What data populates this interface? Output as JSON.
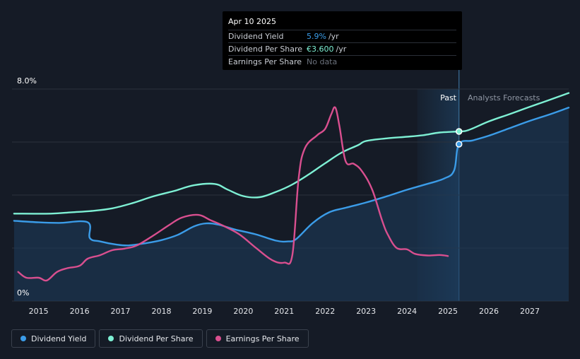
{
  "tooltip": {
    "date": "Apr 10 2025",
    "rows": [
      {
        "label": "Dividend Yield",
        "value": "5.9%",
        "unit": "/yr",
        "color": "#3b9ce8"
      },
      {
        "label": "Dividend Per Share",
        "value": "€3.600",
        "unit": "/yr",
        "color": "#7ef0d4"
      },
      {
        "label": "Earnings Per Share",
        "value": "No data",
        "unit": "",
        "color": "#6b717c"
      }
    ]
  },
  "zones": {
    "past": "Past",
    "forecast": "Analysts Forecasts"
  },
  "legend": [
    {
      "label": "Dividend Yield",
      "color": "#3b9ce8"
    },
    {
      "label": "Dividend Per Share",
      "color": "#7ef0d4"
    },
    {
      "label": "Earnings Per Share",
      "color": "#d94f8f"
    }
  ],
  "chart_data": {
    "type": "line",
    "x_ticks": [
      "2015",
      "2016",
      "2017",
      "2018",
      "2019",
      "2020",
      "2021",
      "2022",
      "2023",
      "2024",
      "2025",
      "2026",
      "2027"
    ],
    "y_ticks": [
      "0%",
      "8.0%"
    ],
    "ylim": [
      0,
      8
    ],
    "xlim": [
      2014.35,
      2027.95
    ],
    "past_forecast_split": 2025.27,
    "highlight_start": 2024.25,
    "grid": true,
    "series": [
      {
        "name": "Dividend Yield",
        "color": "#3b9ce8",
        "area": true,
        "points": [
          [
            2014.4,
            3.03
          ],
          [
            2015.0,
            2.97
          ],
          [
            2015.5,
            2.95
          ],
          [
            2016.2,
            2.97
          ],
          [
            2016.25,
            2.38
          ],
          [
            2016.5,
            2.25
          ],
          [
            2016.9,
            2.13
          ],
          [
            2017.2,
            2.1
          ],
          [
            2017.6,
            2.18
          ],
          [
            2018.0,
            2.3
          ],
          [
            2018.4,
            2.5
          ],
          [
            2018.8,
            2.82
          ],
          [
            2019.1,
            2.93
          ],
          [
            2019.4,
            2.88
          ],
          [
            2019.8,
            2.7
          ],
          [
            2020.3,
            2.52
          ],
          [
            2020.8,
            2.28
          ],
          [
            2021.1,
            2.25
          ],
          [
            2021.3,
            2.35
          ],
          [
            2021.7,
            2.95
          ],
          [
            2022.1,
            3.35
          ],
          [
            2022.5,
            3.52
          ],
          [
            2023.0,
            3.72
          ],
          [
            2023.5,
            3.95
          ],
          [
            2024.0,
            4.2
          ],
          [
            2024.4,
            4.38
          ],
          [
            2024.9,
            4.62
          ],
          [
            2025.15,
            4.93
          ],
          [
            2025.27,
            5.92
          ],
          [
            2025.6,
            6.06
          ],
          [
            2026.0,
            6.24
          ],
          [
            2026.5,
            6.52
          ],
          [
            2027.0,
            6.8
          ],
          [
            2027.5,
            7.05
          ],
          [
            2027.95,
            7.3
          ]
        ]
      },
      {
        "name": "Dividend Per Share",
        "color": "#7ef0d4",
        "area": false,
        "points": [
          [
            2014.4,
            3.3
          ],
          [
            2015.3,
            3.3
          ],
          [
            2015.8,
            3.35
          ],
          [
            2016.3,
            3.4
          ],
          [
            2016.8,
            3.5
          ],
          [
            2017.3,
            3.7
          ],
          [
            2017.8,
            3.95
          ],
          [
            2018.3,
            4.15
          ],
          [
            2018.8,
            4.37
          ],
          [
            2019.3,
            4.42
          ],
          [
            2019.6,
            4.22
          ],
          [
            2020.0,
            3.96
          ],
          [
            2020.4,
            3.92
          ],
          [
            2020.8,
            4.12
          ],
          [
            2021.2,
            4.4
          ],
          [
            2021.6,
            4.78
          ],
          [
            2022.0,
            5.2
          ],
          [
            2022.4,
            5.6
          ],
          [
            2022.8,
            5.88
          ],
          [
            2023.0,
            6.04
          ],
          [
            2023.5,
            6.14
          ],
          [
            2024.0,
            6.2
          ],
          [
            2024.4,
            6.26
          ],
          [
            2024.8,
            6.36
          ],
          [
            2025.27,
            6.4
          ],
          [
            2025.5,
            6.45
          ],
          [
            2026.0,
            6.78
          ],
          [
            2026.5,
            7.05
          ],
          [
            2027.0,
            7.33
          ],
          [
            2027.5,
            7.6
          ],
          [
            2027.95,
            7.85
          ]
        ]
      },
      {
        "name": "Earnings Per Share",
        "color": "#d94f8f",
        "area": false,
        "points": [
          [
            2014.5,
            1.1
          ],
          [
            2014.7,
            0.88
          ],
          [
            2015.0,
            0.88
          ],
          [
            2015.2,
            0.78
          ],
          [
            2015.45,
            1.1
          ],
          [
            2015.7,
            1.24
          ],
          [
            2016.0,
            1.33
          ],
          [
            2016.2,
            1.6
          ],
          [
            2016.5,
            1.73
          ],
          [
            2016.8,
            1.92
          ],
          [
            2017.1,
            1.98
          ],
          [
            2017.4,
            2.1
          ],
          [
            2017.8,
            2.47
          ],
          [
            2018.2,
            2.88
          ],
          [
            2018.5,
            3.15
          ],
          [
            2018.9,
            3.25
          ],
          [
            2019.2,
            3.05
          ],
          [
            2019.5,
            2.85
          ],
          [
            2019.9,
            2.52
          ],
          [
            2020.3,
            2.02
          ],
          [
            2020.7,
            1.55
          ],
          [
            2021.0,
            1.45
          ],
          [
            2021.2,
            1.75
          ],
          [
            2021.35,
            4.6
          ],
          [
            2021.5,
            5.75
          ],
          [
            2021.8,
            6.25
          ],
          [
            2022.0,
            6.5
          ],
          [
            2022.15,
            7.05
          ],
          [
            2022.25,
            7.3
          ],
          [
            2022.35,
            6.6
          ],
          [
            2022.5,
            5.28
          ],
          [
            2022.7,
            5.18
          ],
          [
            2022.9,
            4.9
          ],
          [
            2023.15,
            4.2
          ],
          [
            2023.4,
            3.0
          ],
          [
            2023.55,
            2.45
          ],
          [
            2023.75,
            2.0
          ],
          [
            2024.0,
            1.95
          ],
          [
            2024.2,
            1.78
          ],
          [
            2024.5,
            1.72
          ],
          [
            2024.8,
            1.74
          ],
          [
            2025.0,
            1.7
          ]
        ]
      }
    ],
    "markers": [
      {
        "series": "Dividend Per Share",
        "x": 2025.27,
        "y": 6.4
      },
      {
        "series": "Dividend Yield",
        "x": 2025.27,
        "y": 5.92
      }
    ]
  }
}
